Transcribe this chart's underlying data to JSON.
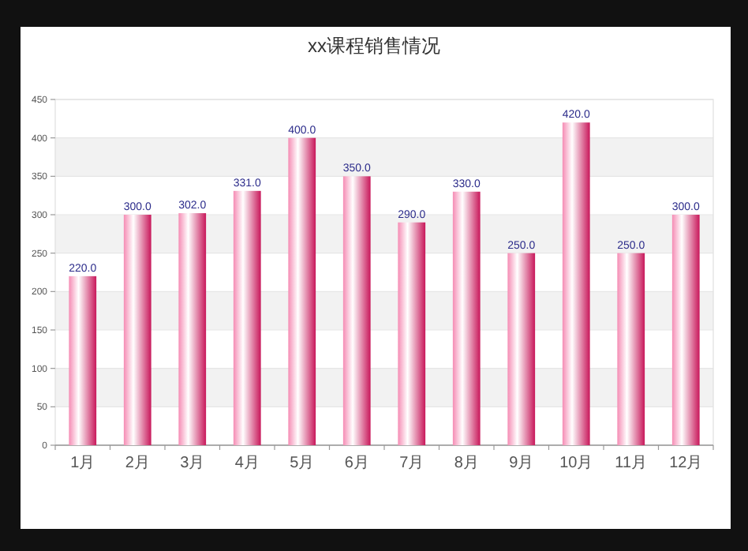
{
  "chart_data": {
    "type": "bar",
    "title": "xx课程销售情况",
    "categories": [
      "1月",
      "2月",
      "3月",
      "4月",
      "5月",
      "6月",
      "7月",
      "8月",
      "9月",
      "10月",
      "11月",
      "12月"
    ],
    "values": [
      220,
      300,
      302,
      331,
      400,
      350,
      290,
      330,
      250,
      420,
      250,
      300
    ],
    "value_labels": [
      "220.0",
      "300.0",
      "302.0",
      "331.0",
      "400.0",
      "350.0",
      "290.0",
      "330.0",
      "250.0",
      "420.0",
      "250.0",
      "300.0"
    ],
    "color": "#c8175a",
    "ylim": [
      0,
      450
    ],
    "yticks": [
      0,
      50,
      100,
      150,
      200,
      250,
      300,
      350,
      400,
      450
    ],
    "grid": "y"
  }
}
